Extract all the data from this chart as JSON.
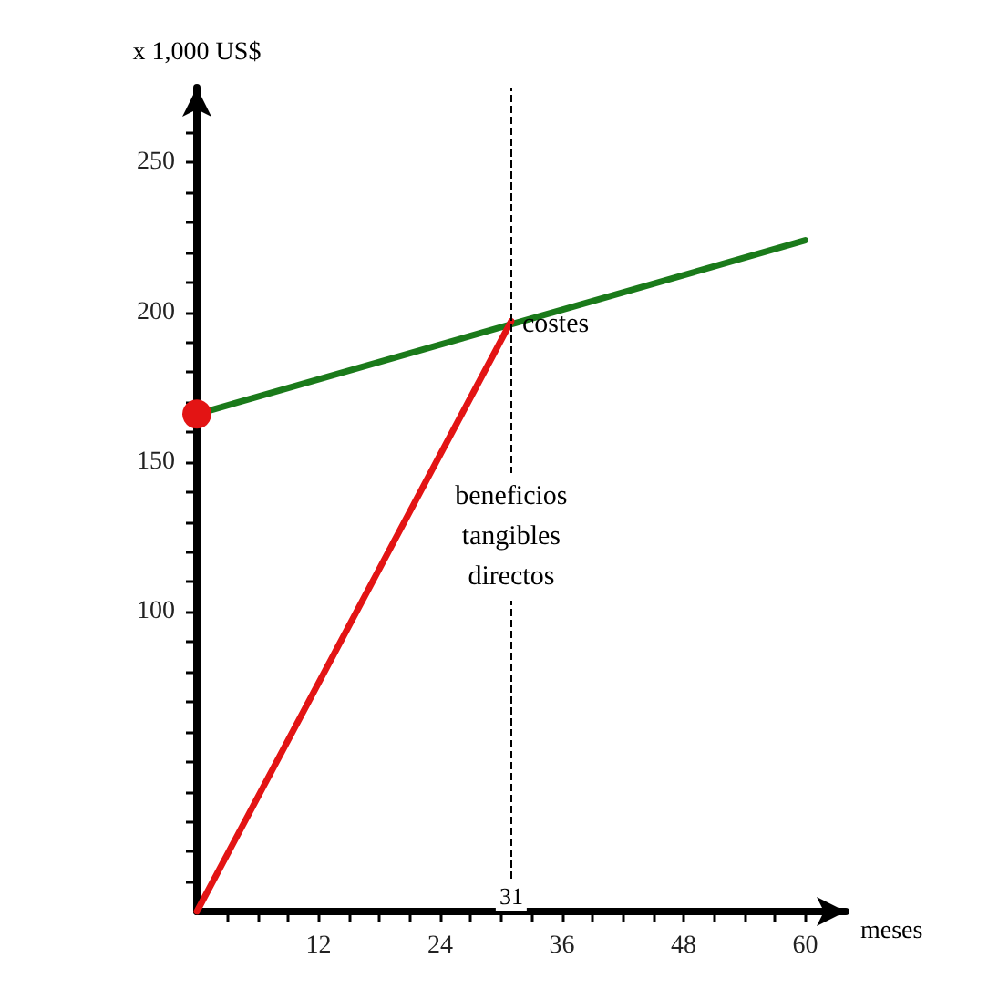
{
  "chart_data": {
    "type": "line",
    "xlabel": "meses",
    "ylabel": "x 1,000 US$",
    "xlim": [
      0,
      64
    ],
    "ylim": [
      0,
      275
    ],
    "xticks": [
      {
        "value": 3,
        "label": null
      },
      {
        "value": 6,
        "label": null
      },
      {
        "value": 9,
        "label": null
      },
      12,
      {
        "value": 15,
        "label": null
      },
      {
        "value": 18,
        "label": null
      },
      {
        "value": 21,
        "label": null
      },
      24,
      {
        "value": 27,
        "label": null
      },
      {
        "value": 30,
        "label": null
      },
      {
        "value": 33,
        "label": null
      },
      36,
      {
        "value": 39,
        "label": null
      },
      {
        "value": 42,
        "label": null
      },
      {
        "value": 45,
        "label": null
      },
      48,
      {
        "value": 51,
        "label": null
      },
      {
        "value": 54,
        "label": null
      },
      {
        "value": 57,
        "label": null
      },
      60
    ],
    "yticks": [
      {
        "value": 10,
        "label": null
      },
      {
        "value": 20,
        "label": null
      },
      {
        "value": 30,
        "label": null
      },
      {
        "value": 40,
        "label": null
      },
      {
        "value": 50,
        "label": null
      },
      {
        "value": 60,
        "label": null
      },
      {
        "value": 70,
        "label": null
      },
      {
        "value": 80,
        "label": null
      },
      {
        "value": 90,
        "label": null
      },
      100,
      {
        "value": 110,
        "label": null
      },
      {
        "value": 120,
        "label": null
      },
      {
        "value": 130,
        "label": null
      },
      {
        "value": 140,
        "label": null
      },
      150,
      {
        "value": 160,
        "label": null
      },
      {
        "value": 170,
        "label": null
      },
      {
        "value": 180,
        "label": null
      },
      {
        "value": 190,
        "label": null
      },
      200,
      {
        "value": 210,
        "label": null
      },
      {
        "value": 220,
        "label": null
      },
      {
        "value": 230,
        "label": null
      },
      {
        "value": 240,
        "label": null
      },
      250,
      {
        "value": 260,
        "label": null
      }
    ],
    "grid": false,
    "series": [
      {
        "color": "#1a7a1a",
        "x": [
          0,
          60
        ],
        "values": [
          166,
          224
        ]
      },
      {
        "color": "#e31414",
        "x": [
          0,
          31
        ],
        "values": [
          0,
          197
        ]
      },
      {
        "type": "scatter",
        "marker": "circle",
        "color": "#e31414",
        "x": [
          0
        ],
        "values": [
          166
        ]
      }
    ],
    "ref_lines": [
      {
        "axis": "x",
        "value": 31,
        "label": "31",
        "line_style": "dashed",
        "color": "#000000"
      }
    ],
    "annotations": [
      {
        "text": "costes",
        "x": 31,
        "y": 196
      },
      {
        "text": "beneficios\ntangibles\ndirectos",
        "x": 31,
        "y": 125
      }
    ]
  }
}
